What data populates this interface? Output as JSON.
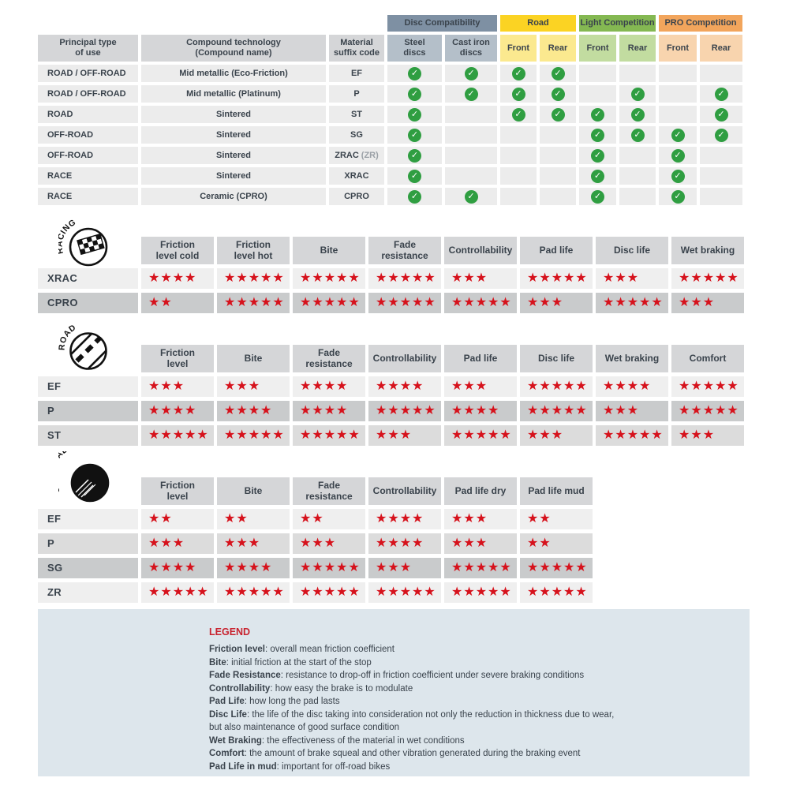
{
  "colors": {
    "text": "#3a434c",
    "header_gray": "#d5d6d8",
    "row_gray": "#ececec",
    "shade_light": "#efefef",
    "shade_medium": "#dcdcdc",
    "shade_dark": "#c9cbcc",
    "star": "#d6121c",
    "check": "#2f9e41",
    "legend_bg": "#dde6ec",
    "legend_title": "#c8222e",
    "code_suffix_gray": "#9aa0a6"
  },
  "compat_table": {
    "plain_headers": [
      "Principal type\nof use",
      "Compound technology\n(Compound name)",
      "Material\nsuffix code"
    ],
    "groups": [
      {
        "label": "Disc Compatibility",
        "bg": "#7e90a3",
        "sub_bg": "#b4bfc9"
      },
      {
        "label": "Road",
        "bg": "#fbd323",
        "sub_bg": "#fbe98f"
      },
      {
        "label": "Light Competition",
        "bg": "#84b852",
        "sub_bg": "#c2dca0"
      },
      {
        "label": "PRO Competition",
        "bg": "#f2a55c",
        "sub_bg": "#f8d4ae"
      }
    ],
    "sub_headers": [
      {
        "label": "Steel\ndiscs",
        "group": 0
      },
      {
        "label": "Cast iron\ndiscs",
        "group": 0
      },
      {
        "label": "Front",
        "group": 1
      },
      {
        "label": "Rear",
        "group": 1
      },
      {
        "label": "Front",
        "group": 2
      },
      {
        "label": "Rear",
        "group": 2
      },
      {
        "label": "Front",
        "group": 3
      },
      {
        "label": "Rear",
        "group": 3
      }
    ],
    "rows": [
      {
        "use": "ROAD / OFF-ROAD",
        "tech": "Mid metallic (Eco-Friction)",
        "code": "EF",
        "code_suffix": "",
        "checks": [
          1,
          1,
          1,
          1,
          0,
          0,
          0,
          0
        ]
      },
      {
        "use": "ROAD / OFF-ROAD",
        "tech": "Mid metallic (Platinum)",
        "code": "P",
        "code_suffix": "",
        "checks": [
          1,
          1,
          1,
          1,
          0,
          1,
          0,
          1
        ]
      },
      {
        "use": "ROAD",
        "tech": "Sintered",
        "code": "ST",
        "code_suffix": "",
        "checks": [
          1,
          0,
          1,
          1,
          1,
          1,
          0,
          1
        ]
      },
      {
        "use": "OFF-ROAD",
        "tech": "Sintered",
        "code": "SG",
        "code_suffix": "",
        "checks": [
          1,
          0,
          0,
          0,
          1,
          1,
          1,
          1
        ]
      },
      {
        "use": "OFF-ROAD",
        "tech": "Sintered",
        "code": "ZRAC",
        "code_suffix": "(ZR)",
        "checks": [
          1,
          0,
          0,
          0,
          1,
          0,
          1,
          0
        ]
      },
      {
        "use": "RACE",
        "tech": "Sintered",
        "code": "XRAC",
        "code_suffix": "",
        "checks": [
          1,
          0,
          0,
          0,
          1,
          0,
          1,
          0
        ]
      },
      {
        "use": "RACE",
        "tech": "Ceramic (CPRO)",
        "code": "CPRO",
        "code_suffix": "",
        "checks": [
          1,
          1,
          0,
          0,
          1,
          0,
          1,
          0
        ]
      }
    ]
  },
  "rating_tables": [
    {
      "id": "racing",
      "icon_label": "RACING",
      "columns": [
        "Friction\nlevel cold",
        "Friction\nlevel hot",
        "Bite",
        "Fade\nresistance",
        "Controllability",
        "Pad life",
        "Disc life",
        "Wet braking"
      ],
      "rows": [
        {
          "label": "XRAC",
          "shade": "light",
          "ratings": [
            4,
            5,
            5,
            5,
            3,
            5,
            3,
            5
          ]
        },
        {
          "label": "CPRO",
          "shade": "dark",
          "ratings": [
            2,
            5,
            5,
            5,
            5,
            3,
            5,
            3
          ]
        }
      ]
    },
    {
      "id": "road",
      "icon_label": "ROAD",
      "columns": [
        "Friction\nlevel",
        "Bite",
        "Fade\nresistance",
        "Controllability",
        "Pad life",
        "Disc life",
        "Wet braking",
        "Comfort"
      ],
      "rows": [
        {
          "label": "EF",
          "shade": "light",
          "ratings": [
            3,
            3,
            4,
            4,
            3,
            5,
            4,
            5
          ]
        },
        {
          "label": "P",
          "shade": "dark",
          "ratings": [
            4,
            4,
            4,
            5,
            4,
            5,
            3,
            5
          ]
        },
        {
          "label": "ST",
          "shade": "medium",
          "ratings": [
            5,
            5,
            5,
            3,
            5,
            3,
            5,
            3
          ]
        }
      ]
    },
    {
      "id": "offroad",
      "icon_label": "OFF-ROAD",
      "columns": [
        "Friction\nlevel",
        "Bite",
        "Fade\nresistance",
        "Controllability",
        "Pad life dry",
        "Pad life mud"
      ],
      "rows": [
        {
          "label": "EF",
          "shade": "light",
          "ratings": [
            2,
            2,
            2,
            4,
            3,
            2
          ]
        },
        {
          "label": "P",
          "shade": "medium",
          "ratings": [
            3,
            3,
            3,
            4,
            3,
            2
          ]
        },
        {
          "label": "SG",
          "shade": "dark",
          "ratings": [
            4,
            4,
            5,
            3,
            5,
            5
          ]
        },
        {
          "label": "ZR",
          "shade": "light",
          "ratings": [
            5,
            5,
            5,
            5,
            5,
            5
          ]
        }
      ]
    }
  ],
  "legend": {
    "title": "LEGEND",
    "entries": [
      {
        "term": "Friction level",
        "desc": "overall mean friction coefficient"
      },
      {
        "term": "Bite",
        "desc": "initial friction at the start of the stop"
      },
      {
        "term": "Fade Resistance",
        "desc": "resistance to drop-off in friction coefficient under severe braking conditions"
      },
      {
        "term": "Controllability",
        "desc": "how easy the brake is to modulate"
      },
      {
        "term": "Pad Life",
        "desc": "how long the pad lasts"
      },
      {
        "term": "Disc Life",
        "desc": "the life of the disc taking into consideration not only the reduction in thickness due to wear,"
      },
      {
        "term": "",
        "desc": "but also maintenance of good surface condition"
      },
      {
        "term": "Wet Braking",
        "desc": "the effectiveness of the material in wet conditions"
      },
      {
        "term": "Comfort",
        "desc": "the amount of brake squeal and other vibration generated during the braking event"
      },
      {
        "term": "Pad Life in mud",
        "desc": "important for off-road bikes"
      }
    ]
  }
}
